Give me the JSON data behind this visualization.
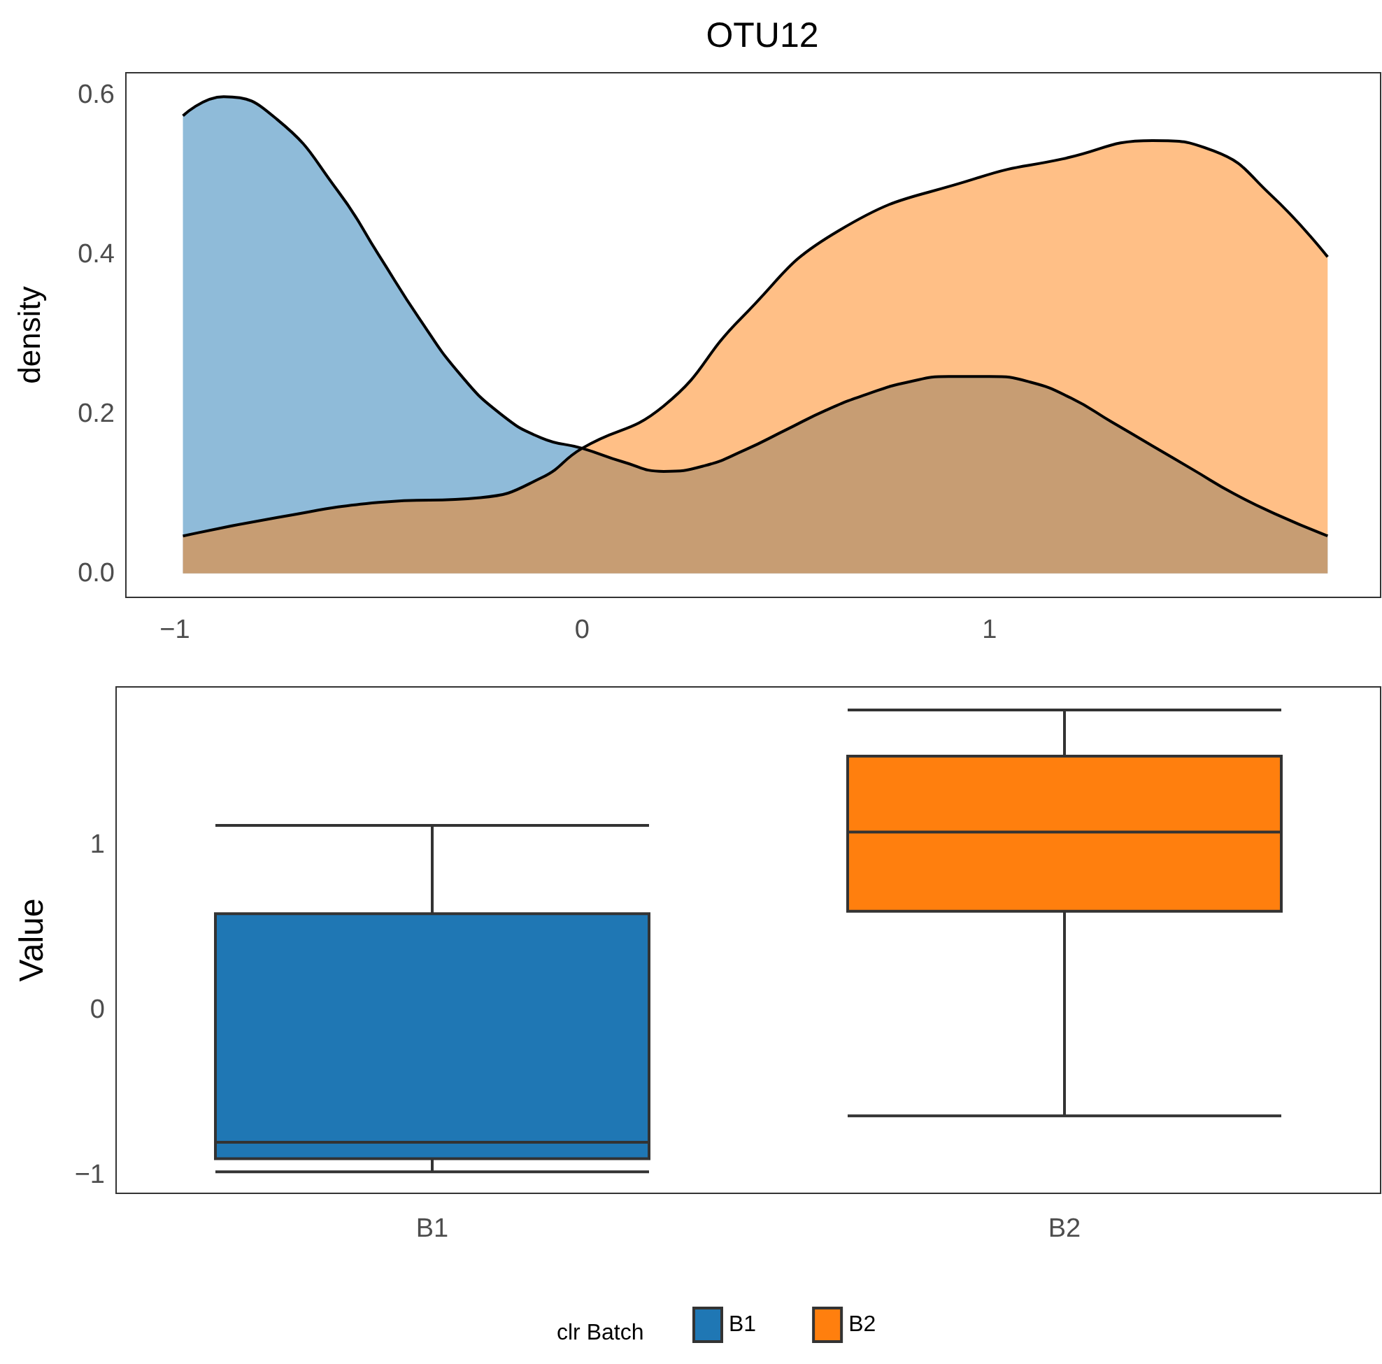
{
  "chart_data": [
    {
      "type": "area",
      "title": "OTU12",
      "ylabel": "density",
      "xlim": [
        -1.12,
        1.96
      ],
      "ylim": [
        -0.03,
        0.628
      ],
      "xticks": [
        {
          "value": -1,
          "label": "−1"
        },
        0,
        1
      ],
      "yticks": [
        {
          "value": 0,
          "label": "0.0"
        },
        0.2,
        0.4,
        0.6
      ],
      "grid": false,
      "series": [
        {
          "color": "#1f77b4",
          "x": [
            -0.98,
            -0.88,
            -0.75,
            -0.6,
            -0.5,
            -0.4,
            -0.3,
            -0.2,
            -0.1,
            0,
            0.1,
            0.2,
            0.3,
            0.4,
            0.5,
            0.6,
            0.7,
            0.8,
            0.9,
            1.0,
            1.1,
            1.2,
            1.3,
            1.4,
            1.5,
            1.6,
            1.7,
            1.83
          ],
          "values": [
            0.574,
            0.598,
            0.57,
            0.48,
            0.4,
            0.32,
            0.25,
            0.2,
            0.17,
            0.157,
            0.14,
            0.128,
            0.135,
            0.155,
            0.18,
            0.205,
            0.225,
            0.24,
            0.247,
            0.247,
            0.24,
            0.22,
            0.19,
            0.16,
            0.13,
            0.1,
            0.075,
            0.047
          ]
        },
        {
          "color": "#ff7f0e",
          "x": [
            -0.98,
            -0.75,
            -0.5,
            -0.25,
            -0.1,
            0,
            0.2,
            0.39,
            0.63,
            0.97,
            1.18,
            1.4,
            1.55,
            1.69,
            1.83
          ],
          "values": [
            0.047,
            0.07,
            0.089,
            0.095,
            0.12,
            0.157,
            0.21,
            0.32,
            0.43,
            0.496,
            0.52,
            0.543,
            0.53,
            0.475,
            0.397
          ]
        }
      ]
    },
    {
      "type": "box",
      "ylabel": "Value",
      "categories": [
        "B1",
        "B2"
      ],
      "ylim": [
        -1.11,
        1.96
      ],
      "yticks": [
        {
          "value": -1,
          "label": "−1"
        },
        0,
        1
      ],
      "grid": false,
      "legend": "bottom",
      "legend_title": "clr Batch",
      "series": [
        {
          "name": "B1",
          "color": "#1f77b4",
          "boxes": [
            {
              "low": -0.98,
              "q1": -0.9,
              "median": -0.8,
              "q3": 0.585,
              "high": 1.12
            },
            null
          ]
        },
        {
          "name": "B2",
          "color": "#ff7f0e",
          "boxes": [
            null,
            {
              "low": -0.64,
              "q1": 0.6,
              "median": 1.08,
              "q3": 1.54,
              "high": 1.82
            }
          ]
        }
      ]
    }
  ]
}
